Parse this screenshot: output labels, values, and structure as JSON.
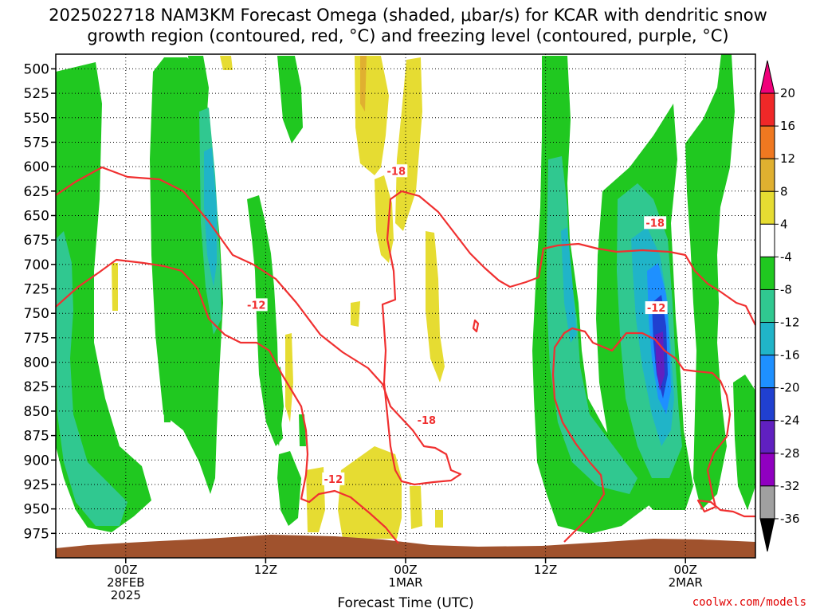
{
  "title": {
    "line1": "2025022718 NAM3KM Forecast Omega (shaded, μbar/s) for KCAR with dendritic snow",
    "line2": "growth region (contoured, red, °C) and freezing level (contoured, purple, °C)"
  },
  "credit": "coolwx.com/models",
  "chart_data": {
    "type": "heatmap",
    "title": "2025022718 NAM3KM Forecast Omega (shaded, μbar/s) for KCAR with dendritic snow growth region (contoured, red, °C) and freezing level (contoured, purple, °C)",
    "xlabel": "Forecast Time (UTC)",
    "ylabel": "",
    "x_ticks": [
      {
        "label": [
          "00Z",
          "28FEB",
          "2025"
        ],
        "hour": 6
      },
      {
        "label": [
          "12Z"
        ],
        "hour": 18
      },
      {
        "label": [
          "00Z",
          "1MAR"
        ],
        "hour": 30
      },
      {
        "label": [
          "12Z"
        ],
        "hour": 42
      },
      {
        "label": [
          "00Z",
          "2MAR"
        ],
        "hour": 54
      }
    ],
    "xlim_hours": [
      0,
      60
    ],
    "y_ticks": [
      500,
      525,
      550,
      575,
      600,
      625,
      650,
      675,
      700,
      725,
      750,
      775,
      800,
      825,
      850,
      875,
      900,
      925,
      950,
      975
    ],
    "ylim_hpa": [
      485,
      1000
    ],
    "y_inverted": true,
    "grid": true,
    "colorbar": {
      "levels": [
        "20",
        "16",
        "12",
        "8",
        "4",
        "-4",
        "-8",
        "-12",
        "-16",
        "-20",
        "-24",
        "-28",
        "-32",
        "-36"
      ],
      "colors": [
        "#f0007a",
        "#f02828",
        "#f07820",
        "#e0b030",
        "#e6dc32",
        "#ffffff",
        "#20c820",
        "#30c890",
        "#20b4c8",
        "#1e90ff",
        "#2040d0",
        "#6020c0",
        "#9000c0",
        "#a0a0a0",
        "#000000"
      ]
    },
    "contour_labels": [
      {
        "text": "-18",
        "hour": 29.2,
        "p": 605
      },
      {
        "text": "-18",
        "hour": 31.8,
        "p": 860
      },
      {
        "text": "-18",
        "hour": 51.4,
        "p": 658
      },
      {
        "text": "-12",
        "hour": 17.2,
        "p": 742
      },
      {
        "text": "-12",
        "hour": 23.8,
        "p": 920
      },
      {
        "text": "-12",
        "hour": 51.5,
        "p": 745
      }
    ],
    "terrain": {
      "label": "ground",
      "pressure_hpa_approx": 987
    }
  }
}
